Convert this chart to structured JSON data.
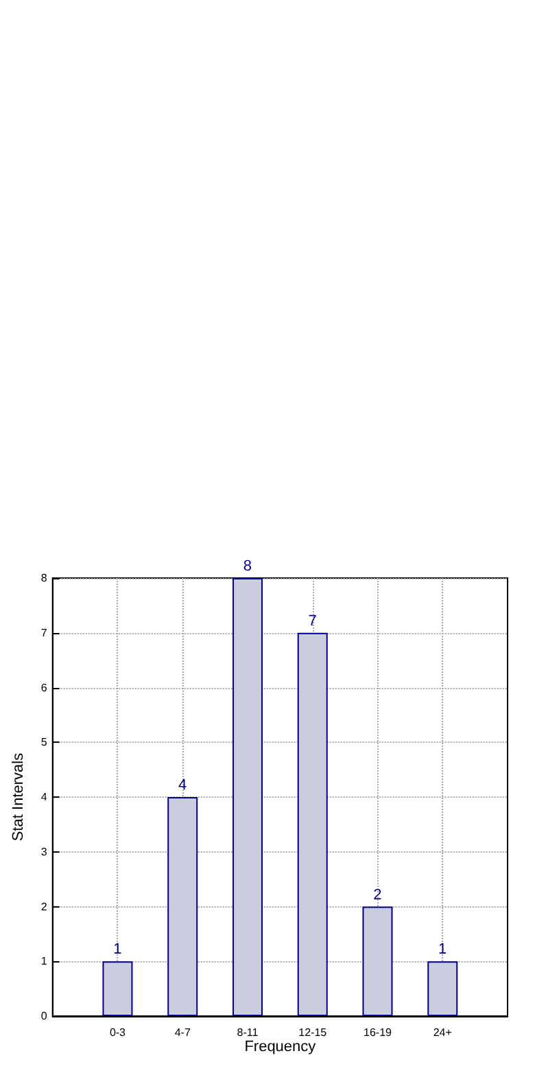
{
  "chart_data": {
    "type": "bar",
    "xlabel": "Frequency",
    "ylabel": "Stat Intervals",
    "categories": [
      "0-3",
      "4-7",
      "8-11",
      "12-15",
      "16-19",
      "24+"
    ],
    "values": [
      1,
      4,
      8,
      7,
      2,
      1
    ],
    "color": "#ccccdf",
    "ylim": [
      0,
      8
    ],
    "yticks": [
      0,
      1,
      2,
      3,
      4,
      5,
      6,
      7,
      8
    ],
    "grid": true,
    "data_labels": true
  }
}
